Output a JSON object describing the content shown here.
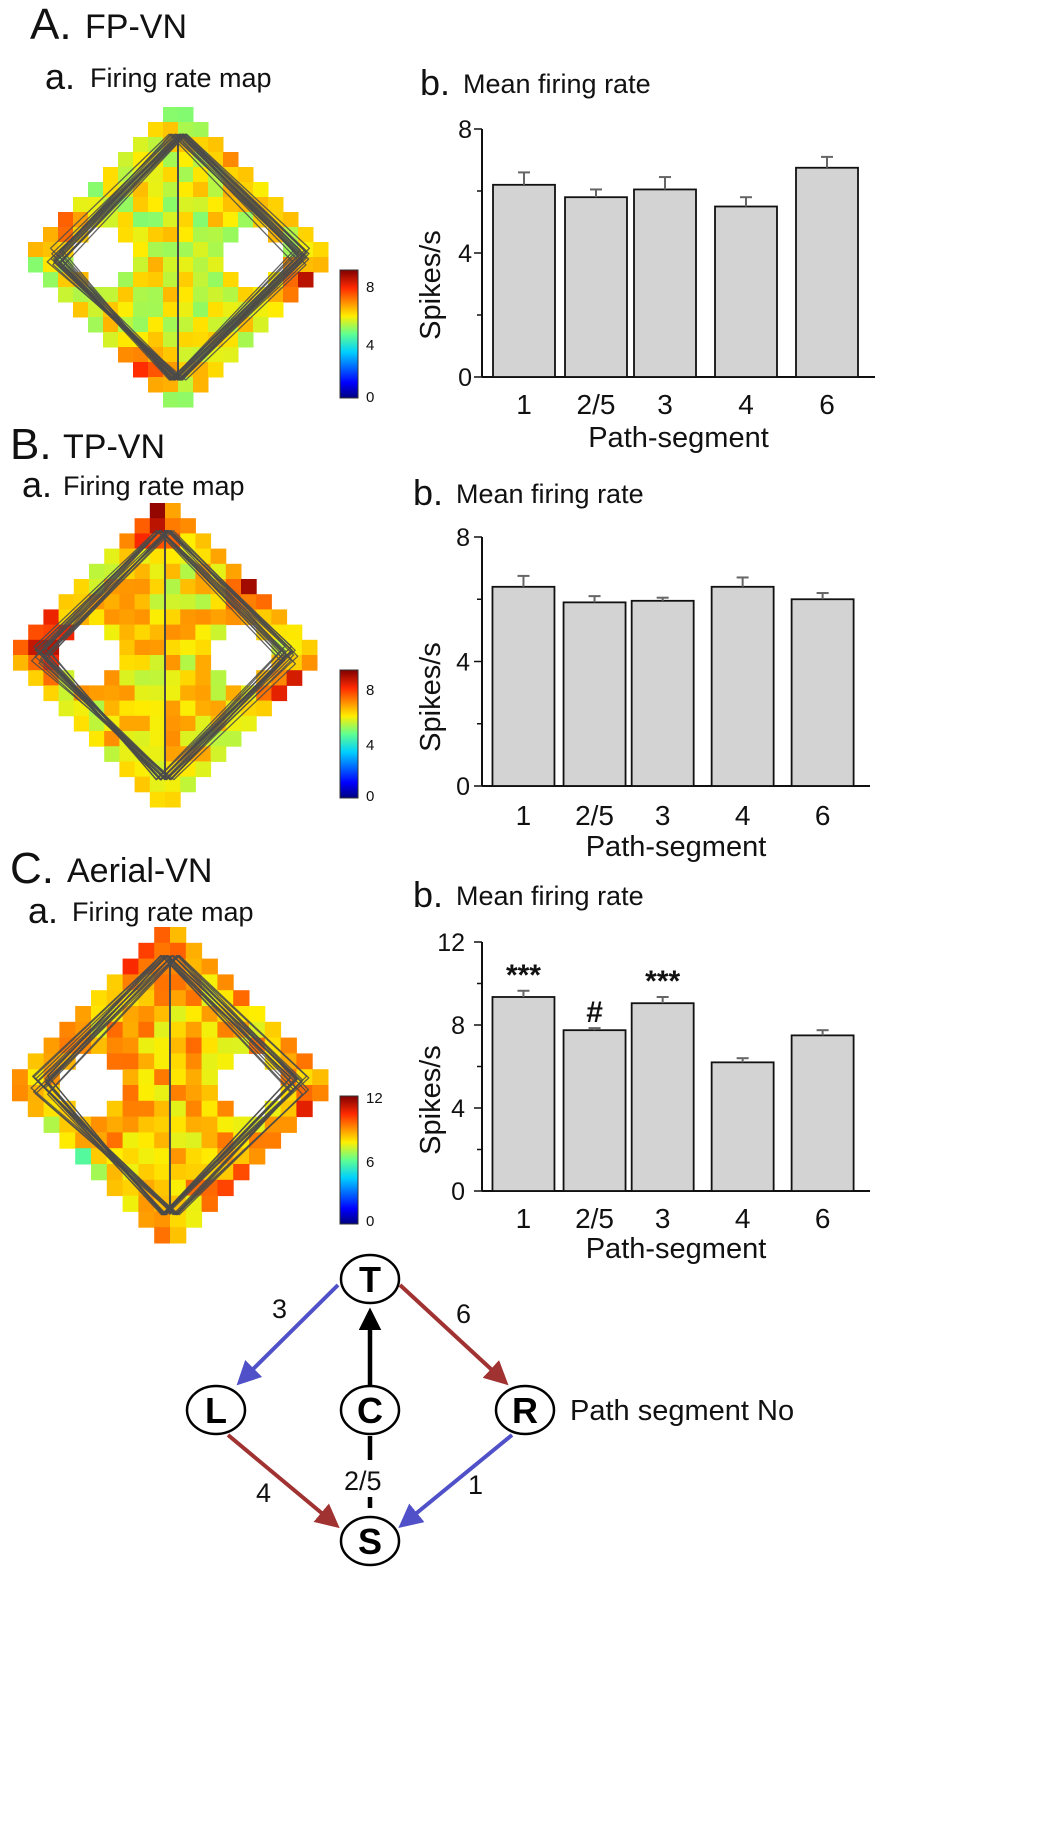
{
  "panels": [
    {
      "letter": "A.",
      "name": "FP-VN",
      "map_label_letter": "a.",
      "map_label": "Firing rate map",
      "chart_label_letter": "b.",
      "chart_label": "Mean firing rate",
      "colorbar_ticks": [
        "8",
        "4",
        "0"
      ]
    },
    {
      "letter": "B.",
      "name": "TP-VN",
      "map_label_letter": "a.",
      "map_label": "Firing rate map",
      "chart_label_letter": "b.",
      "chart_label": "Mean firing rate",
      "colorbar_ticks": [
        "8",
        "4",
        "0"
      ]
    },
    {
      "letter": "C.",
      "name": "Aerial-VN",
      "map_label_letter": "a.",
      "map_label": "Firing rate map",
      "chart_label_letter": "b.",
      "chart_label": "Mean firing rate",
      "colorbar_ticks": [
        "12",
        "6",
        "0"
      ]
    }
  ],
  "colors": {
    "bar_fill": "#d3d3d3",
    "bar_stroke": "#111111",
    "error_bar": "#666666",
    "trajectory": "#4a4a4a",
    "blue_arrow": "#5050c8",
    "red_arrow": "#a03232",
    "black_arrow": "#000000"
  },
  "chart_data": [
    {
      "type": "bar",
      "title": "Mean firing rate",
      "categories": [
        "1",
        "2/5",
        "3",
        "4",
        "6"
      ],
      "values": [
        6.2,
        5.8,
        6.05,
        5.5,
        6.75
      ],
      "errors": [
        0.4,
        0.25,
        0.4,
        0.3,
        0.35
      ],
      "annotations": [
        "",
        "",
        "",
        "",
        ""
      ],
      "xlabel": "Path-segment",
      "ylabel": "Spikes/s",
      "ylim": [
        0,
        8
      ],
      "yticks": [
        0,
        4,
        8
      ]
    },
    {
      "type": "bar",
      "title": "Mean firing rate",
      "categories": [
        "1",
        "2/5",
        "3",
        "4",
        "6"
      ],
      "values": [
        6.4,
        5.9,
        5.95,
        6.4,
        6.0
      ],
      "errors": [
        0.35,
        0.2,
        0.1,
        0.3,
        0.2
      ],
      "annotations": [
        "",
        "",
        "",
        "",
        ""
      ],
      "xlabel": "Path-segment",
      "ylabel": "Spikes/s",
      "ylim": [
        0,
        8
      ],
      "yticks": [
        0,
        4,
        8
      ]
    },
    {
      "type": "bar",
      "title": "Mean firing rate",
      "categories": [
        "1",
        "2/5",
        "3",
        "4",
        "6"
      ],
      "values": [
        9.35,
        7.75,
        9.05,
        6.2,
        7.5
      ],
      "errors": [
        0.3,
        0.1,
        0.3,
        0.2,
        0.25
      ],
      "annotations": [
        "***",
        "#",
        "***",
        "",
        ""
      ],
      "xlabel": "Path-segment",
      "ylabel": "Spikes/s",
      "ylim": [
        0,
        12
      ],
      "yticks": [
        0,
        4,
        8,
        12
      ]
    }
  ],
  "diagram": {
    "nodes": [
      "T",
      "L",
      "C",
      "R",
      "S"
    ],
    "edge_labels": [
      "3",
      "6",
      "2/5",
      "4",
      "1"
    ],
    "legend": "Path segment No"
  }
}
